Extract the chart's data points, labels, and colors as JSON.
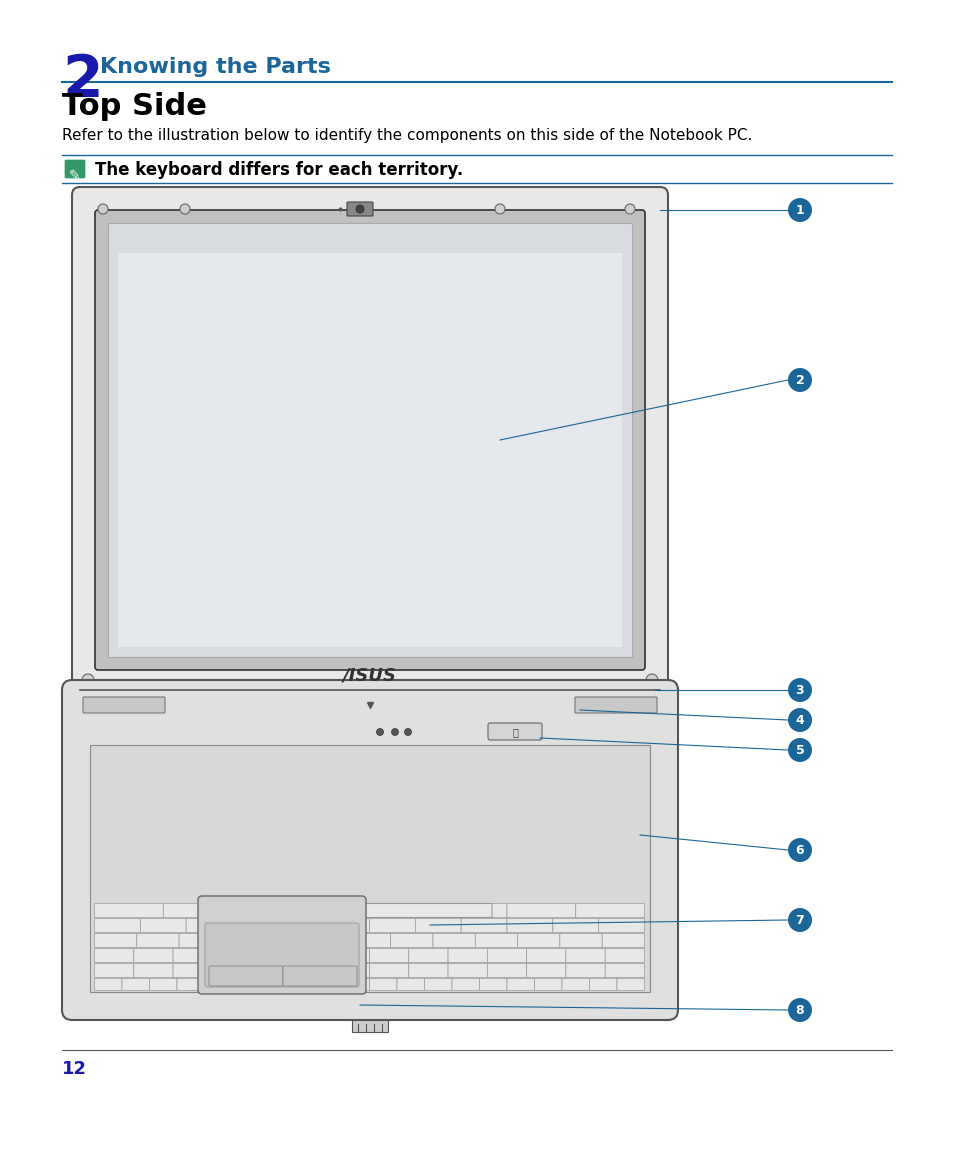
{
  "bg_color": "#ffffff",
  "title_number": "2",
  "title_number_color": "#1a1aaa",
  "title_text": "Knowing the Parts",
  "title_color": "#1a6699",
  "section_title": "Top Side",
  "body_text": "Refer to the illustration below to identify the components on this side of the Notebook PC.",
  "note_text": "The keyboard differs for each territory.",
  "page_number": "12",
  "page_number_color": "#1a1aaa",
  "label_color": "#1a6699",
  "line_color": "#1a6699",
  "circle_bg": "#1a6699",
  "circle_text_color": "#ffffff",
  "labels": [
    "1",
    "2",
    "3",
    "4",
    "5",
    "6",
    "7",
    "8"
  ]
}
